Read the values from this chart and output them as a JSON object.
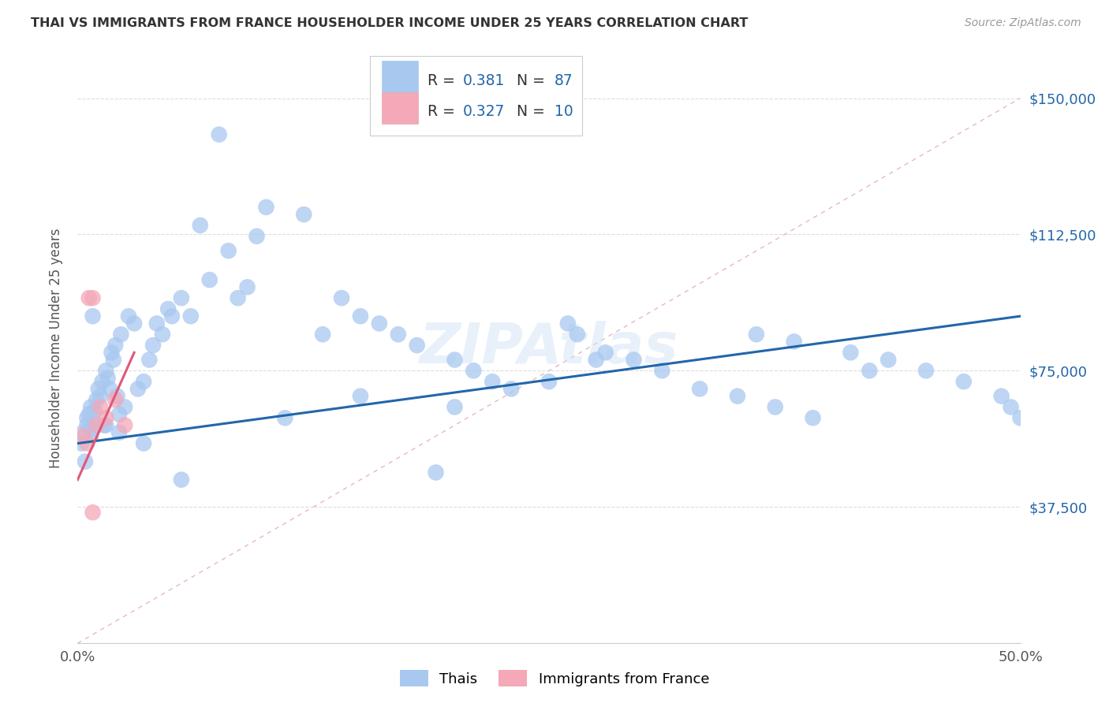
{
  "title": "THAI VS IMMIGRANTS FROM FRANCE HOUSEHOLDER INCOME UNDER 25 YEARS CORRELATION CHART",
  "source": "Source: ZipAtlas.com",
  "ylabel": "Householder Income Under 25 years",
  "xlim": [
    0.0,
    0.5
  ],
  "ylim": [
    0,
    162500
  ],
  "xtick_positions": [
    0.0,
    0.05,
    0.1,
    0.15,
    0.2,
    0.25,
    0.3,
    0.35,
    0.4,
    0.45,
    0.5
  ],
  "xticklabels": [
    "0.0%",
    "",
    "",
    "",
    "",
    "",
    "",
    "",
    "",
    "",
    "50.0%"
  ],
  "ytick_positions": [
    0,
    37500,
    75000,
    112500,
    150000
  ],
  "yticklabels_right": [
    "",
    "$37,500",
    "$75,000",
    "$112,500",
    "$150,000"
  ],
  "thai_R": "0.381",
  "thai_N": "87",
  "france_R": "0.327",
  "france_N": "10",
  "thai_scatter_color": "#a8c8f0",
  "france_scatter_color": "#f4a8b8",
  "thai_line_color": "#2266aa",
  "france_line_color": "#e05878",
  "diagonal_color": "#e8b8c0",
  "diagonal_style": "--",
  "grid_color": "#dddddd",
  "watermark": "ZIPAtlas",
  "thai_x": [
    0.002,
    0.003,
    0.004,
    0.005,
    0.005,
    0.006,
    0.007,
    0.007,
    0.008,
    0.008,
    0.009,
    0.01,
    0.011,
    0.012,
    0.013,
    0.014,
    0.015,
    0.016,
    0.017,
    0.018,
    0.019,
    0.02,
    0.021,
    0.022,
    0.023,
    0.025,
    0.027,
    0.03,
    0.032,
    0.035,
    0.038,
    0.04,
    0.042,
    0.045,
    0.048,
    0.05,
    0.055,
    0.06,
    0.065,
    0.07,
    0.075,
    0.08,
    0.085,
    0.09,
    0.095,
    0.1,
    0.11,
    0.12,
    0.13,
    0.14,
    0.15,
    0.16,
    0.17,
    0.18,
    0.19,
    0.2,
    0.21,
    0.22,
    0.23,
    0.25,
    0.265,
    0.28,
    0.295,
    0.31,
    0.33,
    0.35,
    0.37,
    0.39,
    0.41,
    0.43,
    0.45,
    0.47,
    0.49,
    0.495,
    0.5,
    0.26,
    0.275,
    0.36,
    0.38,
    0.42,
    0.008,
    0.015,
    0.022,
    0.035,
    0.055,
    0.15,
    0.2
  ],
  "thai_y": [
    55000,
    58000,
    50000,
    62000,
    60000,
    63000,
    57000,
    65000,
    61000,
    59000,
    64000,
    67000,
    70000,
    68000,
    72000,
    60000,
    75000,
    73000,
    70000,
    80000,
    78000,
    82000,
    68000,
    58000,
    85000,
    65000,
    90000,
    88000,
    70000,
    72000,
    78000,
    82000,
    88000,
    85000,
    92000,
    90000,
    95000,
    90000,
    115000,
    100000,
    140000,
    108000,
    95000,
    98000,
    112000,
    120000,
    62000,
    118000,
    85000,
    95000,
    90000,
    88000,
    85000,
    82000,
    47000,
    78000,
    75000,
    72000,
    70000,
    72000,
    85000,
    80000,
    78000,
    75000,
    70000,
    68000,
    65000,
    62000,
    80000,
    78000,
    75000,
    72000,
    68000,
    65000,
    62000,
    88000,
    78000,
    85000,
    83000,
    75000,
    90000,
    60000,
    63000,
    55000,
    45000,
    68000,
    65000
  ],
  "france_x": [
    0.003,
    0.005,
    0.006,
    0.008,
    0.01,
    0.012,
    0.015,
    0.02,
    0.025,
    0.008
  ],
  "france_y": [
    57000,
    55000,
    95000,
    95000,
    60000,
    65000,
    62000,
    67000,
    60000,
    36000
  ]
}
